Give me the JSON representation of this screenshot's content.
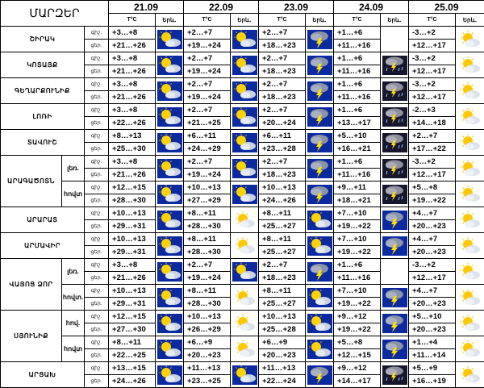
{
  "title": "ՄԱՐԶԵՐ",
  "days": [
    {
      "date": "21.09",
      "t_label": "T°C",
      "icon_label": "Երև."
    },
    {
      "date": "22.09",
      "t_label": "T°C",
      "icon_label": "Երև."
    },
    {
      "date": "23.09",
      "t_label": "T°C",
      "icon_label": "Երև."
    },
    {
      "date": "24.09",
      "t_label": "T°C",
      "icon_label": "Երև."
    },
    {
      "date": "25.09",
      "t_label": "T°C",
      "icon_label": "Երև."
    }
  ],
  "tod_labels": {
    "night": "գիշ.",
    "day": "ցեր."
  },
  "regions": [
    {
      "name": "ՇԻՐԱԿ",
      "rows": [
        {
          "sub": null,
          "cells": [
            {
              "night": "+3…+8",
              "day": "+21…+26",
              "icon": "sunny-cloudy-icon"
            },
            {
              "night": "+2…+7",
              "day": "+19…+24",
              "icon": "sunny-cloudy-icon"
            },
            {
              "night": "+2…+7",
              "day": "+18…+23",
              "icon": "thunderstorm-icon"
            },
            {
              "night": "+1…+6",
              "day": "+11…+16",
              "icon": "none"
            },
            {
              "night": "-3…+2",
              "day": "+12…+17",
              "icon": "sun-behind-cloud-icon"
            }
          ]
        }
      ]
    },
    {
      "name": "ԿՈՏԱՅՔ",
      "rows": [
        {
          "sub": null,
          "cells": [
            {
              "night": "+3…+8",
              "day": "+21…+26",
              "icon": "sunny-cloudy-icon"
            },
            {
              "night": "+2…+7",
              "day": "+19…+24",
              "icon": "sunny-cloudy-icon"
            },
            {
              "night": "+2…+7",
              "day": "+18…+23",
              "icon": "thunderstorm-icon"
            },
            {
              "night": "+1…+6",
              "day": "+11…+16",
              "icon": "storm-rain-icon"
            },
            {
              "night": "-3…+2",
              "day": "+12…+17",
              "icon": "sun-behind-cloud-icon"
            }
          ]
        }
      ]
    },
    {
      "name": "ԳԵՂԱՐՔՈՒՆԻՔ",
      "rows": [
        {
          "sub": null,
          "cells": [
            {
              "night": "+3…+8",
              "day": "+21…+26",
              "icon": "sunny-cloudy-icon"
            },
            {
              "night": "+2…+7",
              "day": "+19…+24",
              "icon": "sunny-cloudy-icon"
            },
            {
              "night": "+2…+7",
              "day": "+18…+23",
              "icon": "thunderstorm-icon"
            },
            {
              "night": "+1…+6",
              "day": "+11…+16",
              "icon": "storm-rain-icon"
            },
            {
              "night": "-3…+2",
              "day": "+12…+17",
              "icon": "sun-behind-cloud-icon"
            }
          ]
        }
      ]
    },
    {
      "name": "ԼՈՌԻ",
      "rows": [
        {
          "sub": null,
          "cells": [
            {
              "night": "+3…+8",
              "day": "+22…+26",
              "icon": "sunny-cloudy-icon"
            },
            {
              "night": "+2…+7",
              "day": "+21…+25",
              "icon": "sunny-cloudy-icon"
            },
            {
              "night": "+2…+7",
              "day": "+20…+24",
              "icon": "thunderstorm-icon"
            },
            {
              "night": "+1…+6",
              "day": "+13…+17",
              "icon": "storm-rain-icon"
            },
            {
              "night": "-2…+3",
              "day": "+14…+18",
              "icon": "sun-behind-cloud-icon"
            }
          ]
        }
      ]
    },
    {
      "name": "ՏԱՎՈՒՇ",
      "rows": [
        {
          "sub": null,
          "cells": [
            {
              "night": "+8…+13",
              "day": "+25…+30",
              "icon": "sunny-cloudy-icon"
            },
            {
              "night": "+6…+11",
              "day": "+24…+29",
              "icon": "sunny-cloudy-icon"
            },
            {
              "night": "+6…+11",
              "day": "+23…+28",
              "icon": "thunderstorm-icon"
            },
            {
              "night": "+5…+10",
              "day": "+16…+21",
              "icon": "storm-rain-icon"
            },
            {
              "night": "+2…+7",
              "day": "+17…+22",
              "icon": "sun-behind-cloud-icon"
            }
          ]
        }
      ]
    },
    {
      "name": "ԱՐԱԳԱԾՈՏՆ",
      "rows": [
        {
          "sub": "լեռ.",
          "cells": [
            {
              "night": "+3…+8",
              "day": "+21…+26",
              "icon": "sunny-cloudy-icon"
            },
            {
              "night": "+2…+7",
              "day": "+19…+24",
              "icon": "sunny-cloudy-icon"
            },
            {
              "night": "+2…+7",
              "day": "+18…+23",
              "icon": "thunderstorm-icon"
            },
            {
              "night": "+1…+6",
              "day": "+11…+16",
              "icon": "storm-rain-icon"
            },
            {
              "night": "-3…+2",
              "day": "+12…+17",
              "icon": "sun-behind-cloud-icon"
            }
          ]
        },
        {
          "sub": "հովտ",
          "cells": [
            {
              "night": "+12…+15",
              "day": "+28…+30",
              "icon": "sunny-cloudy-icon"
            },
            {
              "night": "+10…+13",
              "day": "+27…+29",
              "icon": "sunny-cloudy-icon"
            },
            {
              "night": "+10…+13",
              "day": "+24…+26",
              "icon": "thunderstorm-icon"
            },
            {
              "night": "+9…+11",
              "day": "+18…+21",
              "icon": "storm-rain-icon"
            },
            {
              "night": "+5…+8",
              "day": "+19…+22",
              "icon": "sun-behind-cloud-icon"
            }
          ]
        }
      ]
    },
    {
      "name": "ԱՐԱՐԱՏ",
      "rows": [
        {
          "sub": null,
          "cells": [
            {
              "night": "+10…+13",
              "day": "+29…+31",
              "icon": "sunny-cloudy-icon"
            },
            {
              "night": "+8…+11",
              "day": "+28…+30",
              "icon": "sun-behind-cloud-icon"
            },
            {
              "night": "+8…+11",
              "day": "+25…+27",
              "icon": "sunny-cloudy-icon"
            },
            {
              "night": "+7…+10",
              "day": "+19…+22",
              "icon": "thunderstorm-icon"
            },
            {
              "night": "+4…+7",
              "day": "+20…+23",
              "icon": "sun-behind-cloud-icon"
            }
          ]
        }
      ]
    },
    {
      "name": "ԱՐՄԱՎԻՐ",
      "rows": [
        {
          "sub": null,
          "cells": [
            {
              "night": "+10…+13",
              "day": "+29…+31",
              "icon": "sunny-cloudy-icon"
            },
            {
              "night": "+8…+11",
              "day": "+28…+30",
              "icon": "sun-behind-cloud-icon"
            },
            {
              "night": "+8…+11",
              "day": "+25…+27",
              "icon": "sunny-cloudy-icon"
            },
            {
              "night": "+7…+10",
              "day": "+19…+22",
              "icon": "thunderstorm-icon"
            },
            {
              "night": "+4…+7",
              "day": "+20…+23",
              "icon": "sun-behind-cloud-icon"
            }
          ]
        }
      ]
    },
    {
      "name": "ՎԱՅՈՑ ՁՈՐ",
      "rows": [
        {
          "sub": "լեռ.",
          "cells": [
            {
              "night": "+3…+8",
              "day": "+21…+26",
              "icon": "sunny-cloudy-icon"
            },
            {
              "night": "+2…+7",
              "day": "+19…+24",
              "icon": "sunny-cloudy-icon"
            },
            {
              "night": "+2…+7",
              "day": "+18…+23",
              "icon": "thunderstorm-icon"
            },
            {
              "night": "+1…+6",
              "day": "+11…+16",
              "icon": "none"
            },
            {
              "night": "-3…+2",
              "day": "+12…+17",
              "icon": "sun-behind-cloud-icon"
            }
          ]
        },
        {
          "sub": "հովտ.",
          "cells": [
            {
              "night": "+10…+13",
              "day": "+29…+31",
              "icon": "sunny-cloudy-icon"
            },
            {
              "night": "+8…+11",
              "day": "+28…+30",
              "icon": "sun-behind-cloud-icon"
            },
            {
              "night": "+8…+11",
              "day": "+25…+27",
              "icon": "sunny-cloudy-icon"
            },
            {
              "night": "+7…+10",
              "day": "+19…+22",
              "icon": "thunderstorm-icon"
            },
            {
              "night": "+4…+7",
              "day": "+20…+23",
              "icon": "sun-behind-cloud-icon"
            }
          ]
        }
      ]
    },
    {
      "name": "ՍՅՈՒՆԻՔ",
      "rows": [
        {
          "sub": "հով.",
          "cells": [
            {
              "night": "+12…+15",
              "day": "+27…+30",
              "icon": "sunny-cloudy-icon"
            },
            {
              "night": "+10…+13",
              "day": "+26…+29",
              "icon": "sun-behind-cloud-icon"
            },
            {
              "night": "+10…+13",
              "day": "+25…+28",
              "icon": "sunny-cloudy-icon"
            },
            {
              "night": "+9…+12",
              "day": "+19…+22",
              "icon": "thunderstorm-icon"
            },
            {
              "night": "+5…+10",
              "day": "+20…+23",
              "icon": "sun-behind-cloud-icon"
            }
          ]
        },
        {
          "sub": "հովտ",
          "cells": [
            {
              "night": "+8…+11",
              "day": "+22…+25",
              "icon": "sunny-cloudy-icon"
            },
            {
              "night": "+6…+9",
              "day": "+20…+23",
              "icon": "sun-behind-cloud-icon"
            },
            {
              "night": "+6…+9",
              "day": "+20…+23",
              "icon": "sunny-cloudy-icon"
            },
            {
              "night": "+5…+8",
              "day": "+12…+15",
              "icon": "thunderstorm-icon"
            },
            {
              "night": "+1…+4",
              "day": "+11…+14",
              "icon": "sun-behind-cloud-icon"
            }
          ]
        }
      ]
    },
    {
      "name": "ԱՐՑԱԽ",
      "rows": [
        {
          "sub": null,
          "cells": [
            {
              "night": "+13…+15",
              "day": "+24…+26",
              "icon": "sunny-cloudy-icon"
            },
            {
              "night": "+11…+13",
              "day": "+23…+25",
              "icon": "sunny-cloudy-icon"
            },
            {
              "night": "+11…+13",
              "day": "+22…+24",
              "icon": "thunderstorm-icon"
            },
            {
              "night": "+9…+12",
              "day": "+14…+17",
              "icon": "storm-rain-icon"
            },
            {
              "night": "+5…+9",
              "day": "+16…+19",
              "icon": "sun-behind-cloud-icon"
            }
          ]
        }
      ]
    }
  ]
}
